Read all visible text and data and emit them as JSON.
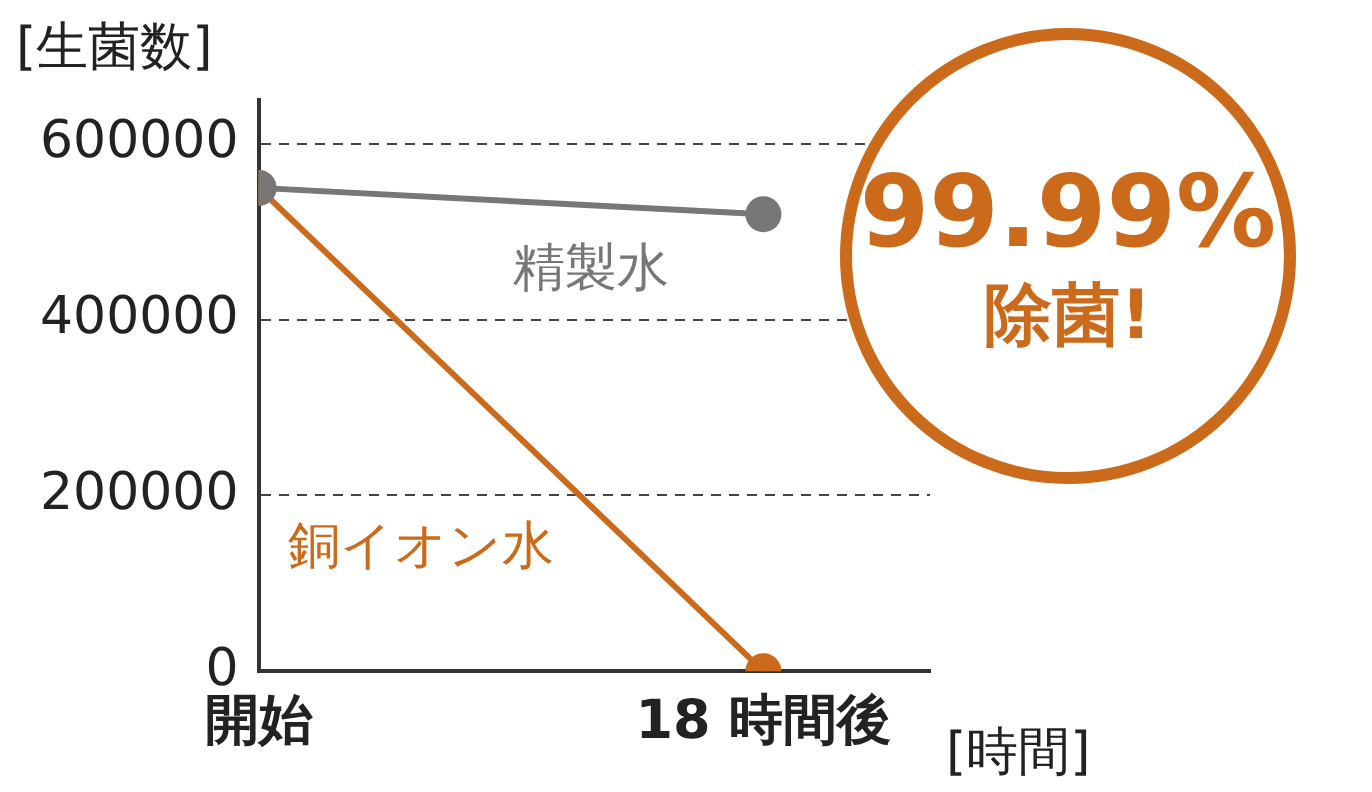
{
  "chart_data": {
    "type": "line",
    "ylabel": "[生菌数]",
    "xlabel": "[時間]",
    "categories": [
      "開始",
      "18 時間後"
    ],
    "series": [
      {
        "name": "精製水",
        "color": "#777777",
        "values": [
          550000,
          520000
        ]
      },
      {
        "name": "銅イオン水",
        "color": "#cc6a1c",
        "values": [
          550000,
          0
        ]
      }
    ],
    "ylim": [
      0,
      650000
    ],
    "yticks": [
      0,
      200000,
      400000,
      600000
    ],
    "grid": "y",
    "marker": "circle",
    "line_style": "solid",
    "legend": false,
    "annotations": [
      "99.99%",
      "除菌!"
    ]
  }
}
